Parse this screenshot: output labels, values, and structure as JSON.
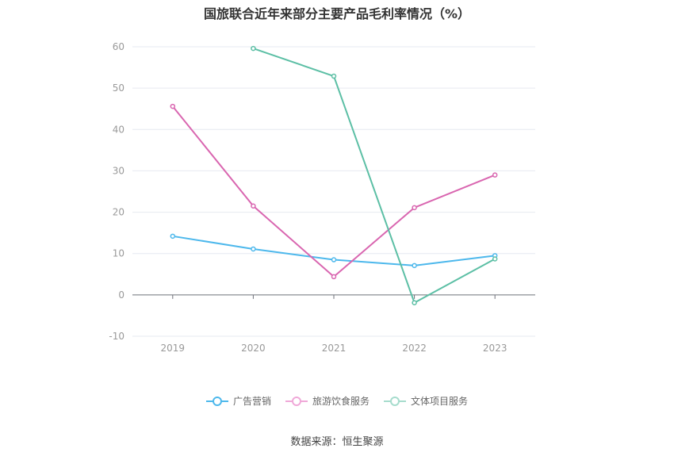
{
  "chart_data": {
    "type": "line",
    "title": "国旅联合近年来部分主要产品毛利率情况（%）",
    "categories": [
      "2019",
      "2020",
      "2021",
      "2022",
      "2023"
    ],
    "ylim": [
      -10,
      60
    ],
    "yticks": [
      60,
      50,
      40,
      30,
      20,
      10,
      0,
      -10
    ],
    "grid": true,
    "legend_position": "bottom",
    "series": [
      {
        "name": "广告营销",
        "color": "#4db8ec",
        "values": [
          14.2,
          11.1,
          8.5,
          7.1,
          9.5
        ]
      },
      {
        "name": "旅游饮食服务",
        "color": "#d966b0",
        "values": [
          45.6,
          21.5,
          4.4,
          21.1,
          29.0
        ]
      },
      {
        "name": "文体项目服务",
        "color": "#5cbfa5",
        "values": [
          null,
          59.6,
          52.9,
          -1.9,
          8.7
        ]
      }
    ]
  },
  "source": "数据来源：恒生聚源"
}
